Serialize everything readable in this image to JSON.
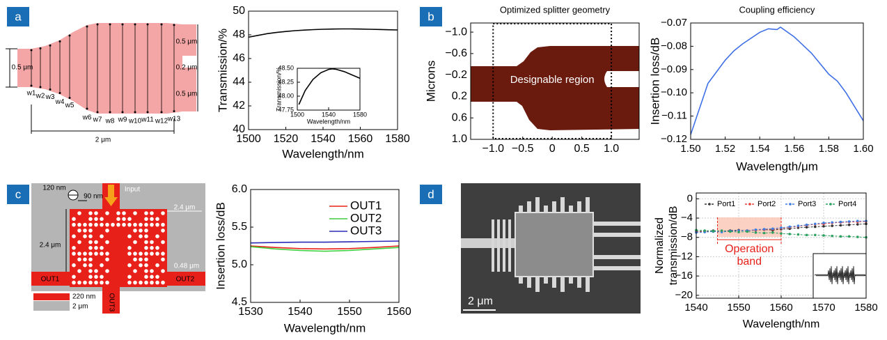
{
  "panels": [
    "a",
    "b",
    "c",
    "d"
  ],
  "diagram_a": {
    "widths": [
      "w1",
      "w2",
      "w3",
      "w4",
      "w5",
      "w6",
      "w7",
      "w8",
      "w9",
      "w10",
      "w11",
      "w12",
      "w13"
    ],
    "input_width": "0.5 μm",
    "length": "2 μm",
    "arm_top": "0.5 μm",
    "gap": "0.2 μm",
    "arm_bottom": "0.5 μm"
  },
  "diagram_c": {
    "hole_diameter": "120 nm",
    "hole_pitch": "90 nm",
    "input": "Input",
    "width": "2.4 μm",
    "height": "2.4 μm",
    "port_width": "0.48 μm",
    "outputs": [
      "OUT1",
      "OUT2",
      "OUT3"
    ],
    "legend_si": "220 nm",
    "legend_sio2": "2 μm"
  },
  "image_d": {
    "scale_bar": "2 μm"
  },
  "chart_data": [
    {
      "type": "line",
      "x_label": "Wavelength/nm",
      "y_label": "Transmission/%",
      "x": [
        1500,
        1505,
        1510,
        1515,
        1520,
        1525,
        1530,
        1535,
        1540,
        1545,
        1550,
        1555,
        1560,
        1565,
        1570,
        1575,
        1580
      ],
      "series": [
        {
          "color": "#000000",
          "values": [
            47.8,
            47.95,
            48.1,
            48.2,
            48.28,
            48.35,
            48.4,
            48.44,
            48.47,
            48.49,
            48.5,
            48.5,
            48.49,
            48.47,
            48.45,
            48.43,
            48.41
          ]
        }
      ],
      "xlim": [
        1500,
        1580
      ],
      "xticks": [
        1500,
        1520,
        1540,
        1560,
        1580
      ],
      "ylim": [
        40,
        50
      ],
      "yticks": [
        40,
        42,
        44,
        46,
        48,
        50
      ],
      "grid": false
    },
    {
      "type": "line",
      "x_label": "Wavelength/nm",
      "y_label": "Transmission/%",
      "x": [
        1502,
        1510,
        1520,
        1530,
        1540,
        1545,
        1550,
        1560,
        1570,
        1580
      ],
      "series": [
        {
          "color": "#000000",
          "values": [
            47.85,
            48.1,
            48.3,
            48.42,
            48.48,
            48.49,
            48.48,
            48.44,
            48.38,
            48.32
          ]
        }
      ],
      "xlim": [
        1500,
        1580
      ],
      "xticks": [
        1500,
        1540,
        1580
      ],
      "ylim": [
        47.75,
        48.5
      ],
      "yticks": [
        47.75,
        {
          "value": 48,
          "label": "48.00"
        },
        48.25,
        {
          "value": 48.5,
          "label": "48.50"
        }
      ],
      "grid": false
    },
    {
      "type": "geometry",
      "title": "Optimized splitter geometry",
      "y_label": "Microns",
      "annotation": "Designable region",
      "region": [
        -1.0,
        1.0
      ],
      "xlim": [
        -1.38,
        1.47
      ],
      "xticks": [
        {
          "value": -1,
          "label": "−1.0"
        },
        {
          "value": -0.5,
          "label": "−0.5"
        },
        0,
        0.5,
        {
          "value": 1,
          "label": "1.0"
        }
      ],
      "ylim": [
        1.0,
        -1.17
      ],
      "yticks": [
        {
          "value": -1,
          "label": "−1.0"
        },
        {
          "value": -0.6,
          "label": "−0.6"
        },
        {
          "value": -0.2,
          "label": "−0.2"
        },
        0.2,
        0.6,
        {
          "value": 1,
          "label": "1.0"
        }
      ],
      "grid": false
    },
    {
      "type": "line",
      "title": "Coupling efficiency",
      "x_label": "Wavelength/μm",
      "y_label": "Insertion loss/dB",
      "x": [
        1.5,
        1.51,
        1.52,
        1.525,
        1.53,
        1.54,
        1.545,
        1.55,
        1.552,
        1.56,
        1.57,
        1.58,
        1.585,
        1.59,
        1.6
      ],
      "series": [
        {
          "color": "#3f6fe6",
          "values": [
            -0.118,
            -0.096,
            -0.086,
            -0.082,
            -0.079,
            -0.074,
            -0.0725,
            -0.0728,
            -0.0718,
            -0.076,
            -0.083,
            -0.092,
            -0.095,
            -0.1,
            -0.112
          ]
        }
      ],
      "xlim": [
        1.5,
        1.6
      ],
      "xticks": [
        {
          "value": 1.5,
          "label": "1.50"
        },
        1.52,
        1.54,
        1.56,
        1.58,
        {
          "value": 1.6,
          "label": "1.60"
        }
      ],
      "ylim": [
        -0.12,
        -0.07
      ],
      "yticks": [
        {
          "value": -0.12,
          "label": "−0.12"
        },
        {
          "value": -0.11,
          "label": "−0.11"
        },
        {
          "value": -0.1,
          "label": "−0.10"
        },
        {
          "value": -0.09,
          "label": "−0.09"
        },
        {
          "value": -0.08,
          "label": "−0.08"
        },
        {
          "value": -0.07,
          "label": "−0.07"
        }
      ],
      "grid": false
    },
    {
      "type": "line",
      "x_label": "Wavelength/nm",
      "y_label": "Insertion loss/dB",
      "legend": "upper right",
      "x": [
        1530,
        1535,
        1540,
        1545,
        1550,
        1555,
        1560
      ],
      "series": [
        {
          "name": "OUT1",
          "color": "#e8201a",
          "values": [
            5.25,
            5.23,
            5.215,
            5.21,
            5.215,
            5.23,
            5.25
          ]
        },
        {
          "name": "OUT2",
          "color": "#3ccf3c",
          "values": [
            5.24,
            5.21,
            5.19,
            5.18,
            5.19,
            5.21,
            5.23
          ]
        },
        {
          "name": "OUT3",
          "color": "#2a2ab8",
          "values": [
            5.29,
            5.295,
            5.3,
            5.3,
            5.305,
            5.31,
            5.315
          ]
        }
      ],
      "xlim": [
        1530,
        1560
      ],
      "xticks": [
        1530,
        1540,
        1550,
        1560
      ],
      "ylim": [
        4.5,
        6.0
      ],
      "yticks": [
        4.5,
        {
          "value": 5,
          "label": "5.0"
        },
        5.5,
        {
          "value": 6,
          "label": "6.0"
        }
      ],
      "grid": false
    },
    {
      "type": "line",
      "x_label": "Wavelength/nm",
      "y_label": [
        "Normalized",
        "transmission/dB"
      ],
      "legend": "upper center",
      "markers": true,
      "linestyle": "dashed",
      "band": {
        "from": 1545,
        "to": 1560,
        "label": [
          "Operation",
          "band"
        ]
      },
      "x": [
        1540,
        1542,
        1544,
        1546,
        1548,
        1550,
        1552,
        1554,
        1556,
        1558,
        1560,
        1562,
        1564,
        1566,
        1568,
        1570,
        1572,
        1574,
        1576,
        1578,
        1580
      ],
      "series": [
        {
          "name": "Port1",
          "color": "#333333",
          "values": [
            -6.8,
            -6.7,
            -6.6,
            -6.7,
            -6.6,
            -6.5,
            -6.6,
            -6.5,
            -6.4,
            -6.5,
            -6.3,
            -6.2,
            -6.0,
            -5.9,
            -5.8,
            -5.7,
            -5.6,
            -5.5,
            -5.4,
            -5.3,
            -5.2
          ]
        },
        {
          "name": "Port2",
          "color": "#e8413c",
          "values": [
            -6.9,
            -6.8,
            -6.8,
            -6.7,
            -6.8,
            -6.6,
            -6.6,
            -6.5,
            -6.4,
            -6.3,
            -6.1,
            -5.9,
            -5.7,
            -5.5,
            -5.3,
            -5.2,
            -5.0,
            -4.9,
            -4.8,
            -4.8,
            -4.7
          ]
        },
        {
          "name": "Port3",
          "color": "#3d7ee0",
          "values": [
            -7.0,
            -6.9,
            -6.8,
            -6.9,
            -6.7,
            -6.6,
            -6.6,
            -6.4,
            -6.3,
            -6.2,
            -6.0,
            -5.8,
            -5.6,
            -5.4,
            -5.2,
            -5.0,
            -4.9,
            -4.8,
            -4.7,
            -4.6,
            -4.6
          ]
        },
        {
          "name": "Port4",
          "color": "#2ca060",
          "values": [
            -6.5,
            -6.6,
            -6.7,
            -6.6,
            -6.8,
            -6.9,
            -6.8,
            -7.0,
            -7.1,
            -7.0,
            -7.2,
            -7.3,
            -7.4,
            -7.5,
            -7.5,
            -7.6,
            -7.7,
            -7.8,
            -7.8,
            -7.9,
            -8.0
          ]
        }
      ],
      "xlim": [
        1540,
        1580
      ],
      "xticks": [
        1540,
        1550,
        1560,
        1570,
        1580
      ],
      "ylim": [
        -20.6,
        1.2
      ],
      "yticks": [
        {
          "value": -20,
          "label": "−20"
        },
        {
          "value": -16,
          "label": "−16"
        },
        {
          "value": -12,
          "label": "−12"
        },
        {
          "value": -8,
          "label": "−8"
        },
        {
          "value": -4,
          "label": "−4"
        },
        0
      ],
      "grid": true
    }
  ]
}
